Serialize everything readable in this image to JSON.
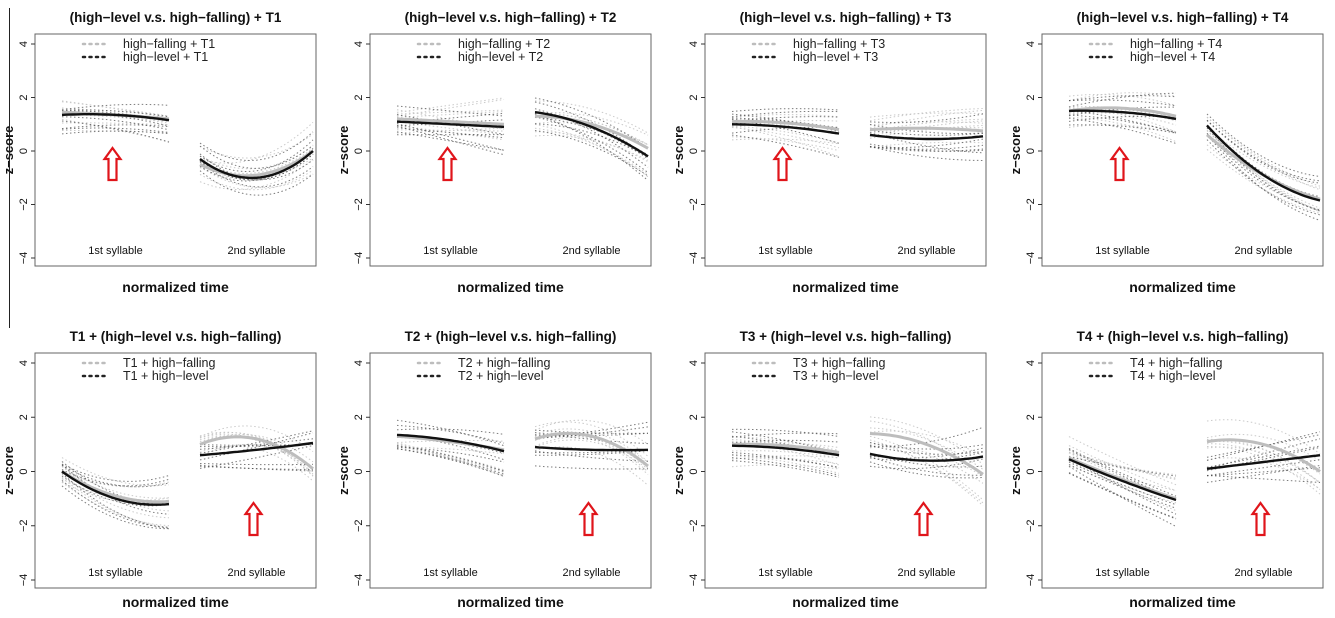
{
  "chart_data": [
    {
      "type": "line",
      "title": "(high−level v.s. high−falling) + T1",
      "xlabel": "normalized time",
      "ylabel": "z−score",
      "ylim": [
        -4,
        4
      ],
      "yticks": [
        "4",
        "2",
        "0",
        "−2",
        "−4"
      ],
      "segments": [
        "1st syllable",
        "2nd syllable"
      ],
      "arrow_segment": 0,
      "legend_position": "top-left",
      "series": [
        {
          "name": "high−falling + T1",
          "color": "#bbbbbb",
          "syl1": [
            1.45,
            1.35,
            1.2
          ],
          "syl2": [
            -0.5,
            -0.9,
            0.0
          ]
        },
        {
          "name": "high−level + T1",
          "color": "#111111",
          "syl1": [
            1.35,
            1.35,
            1.15
          ],
          "syl2": [
            -0.3,
            -1.0,
            0.0
          ]
        }
      ]
    },
    {
      "type": "line",
      "title": "(high−level v.s. high−falling) + T2",
      "xlabel": "normalized time",
      "ylabel": "z−score",
      "ylim": [
        -4,
        4
      ],
      "yticks": [
        "4",
        "2",
        "0",
        "−2",
        "−4"
      ],
      "segments": [
        "1st syllable",
        "2nd syllable"
      ],
      "arrow_segment": 0,
      "legend_position": "top-left",
      "series": [
        {
          "name": "high−falling + T2",
          "color": "#bbbbbb",
          "syl1": [
            1.2,
            1.1,
            1.0
          ],
          "syl2": [
            1.3,
            1.0,
            0.1
          ]
        },
        {
          "name": "high−level + T2",
          "color": "#111111",
          "syl1": [
            1.1,
            1.0,
            0.9
          ],
          "syl2": [
            1.45,
            0.9,
            -0.2
          ]
        }
      ]
    },
    {
      "type": "line",
      "title": "(high−level v.s. high−falling) + T3",
      "xlabel": "normalized time",
      "ylabel": "z−score",
      "ylim": [
        -4,
        4
      ],
      "yticks": [
        "4",
        "2",
        "0",
        "−2",
        "−4"
      ],
      "segments": [
        "1st syllable",
        "2nd syllable"
      ],
      "arrow_segment": 0,
      "legend_position": "top-left",
      "series": [
        {
          "name": "high−falling + T3",
          "color": "#bbbbbb",
          "syl1": [
            1.1,
            1.05,
            0.8
          ],
          "syl2": [
            0.8,
            0.85,
            0.75
          ]
        },
        {
          "name": "high−level + T3",
          "color": "#111111",
          "syl1": [
            1.0,
            0.9,
            0.65
          ],
          "syl2": [
            0.6,
            0.45,
            0.55
          ]
        }
      ]
    },
    {
      "type": "line",
      "title": "(high−level v.s. high−falling) + T4",
      "xlabel": "normalized time",
      "ylabel": "z−score",
      "ylim": [
        -4,
        4
      ],
      "yticks": [
        "4",
        "2",
        "0",
        "−2",
        "−4"
      ],
      "segments": [
        "1st syllable",
        "2nd syllable"
      ],
      "arrow_segment": 0,
      "legend_position": "top-left",
      "series": [
        {
          "name": "high−falling + T4",
          "color": "#bbbbbb",
          "syl1": [
            1.5,
            1.6,
            1.3
          ],
          "syl2": [
            0.6,
            -0.9,
            -1.8
          ]
        },
        {
          "name": "high−level + T4",
          "color": "#111111",
          "syl1": [
            1.5,
            1.45,
            1.2
          ],
          "syl2": [
            0.95,
            -0.9,
            -1.85
          ]
        }
      ]
    },
    {
      "type": "line",
      "title": "T1 + (high−level v.s. high−falling)",
      "xlabel": "normalized time",
      "ylabel": "z−score",
      "ylim": [
        -4,
        4
      ],
      "yticks": [
        "4",
        "2",
        "0",
        "−2",
        "−4"
      ],
      "segments": [
        "1st syllable",
        "2nd syllable"
      ],
      "arrow_segment": 1,
      "legend_position": "top-left",
      "series": [
        {
          "name": "T1 + high−falling",
          "color": "#bbbbbb",
          "syl1": [
            0.0,
            -0.9,
            -1.1
          ],
          "syl2": [
            1.0,
            1.2,
            0.1
          ]
        },
        {
          "name": "T1 + high−level",
          "color": "#111111",
          "syl1": [
            0.0,
            -1.0,
            -1.2
          ],
          "syl2": [
            0.6,
            0.8,
            1.05
          ]
        }
      ]
    },
    {
      "type": "line",
      "title": "T2 + (high−level v.s. high−falling)",
      "xlabel": "normalized time",
      "ylabel": "z−score",
      "ylim": [
        -4,
        4
      ],
      "yticks": [
        "4",
        "2",
        "0",
        "−2",
        "−4"
      ],
      "segments": [
        "1st syllable",
        "2nd syllable"
      ],
      "arrow_segment": 1,
      "legend_position": "top-left",
      "series": [
        {
          "name": "T2 + high−falling",
          "color": "#bbbbbb",
          "syl1": [
            1.3,
            1.1,
            0.8
          ],
          "syl2": [
            1.2,
            1.3,
            0.2
          ]
        },
        {
          "name": "T2 + high−level",
          "color": "#111111",
          "syl1": [
            1.35,
            1.15,
            0.75
          ],
          "syl2": [
            0.9,
            0.8,
            0.8
          ]
        }
      ]
    },
    {
      "type": "line",
      "title": "T3 + (high−level v.s. high−falling)",
      "xlabel": "normalized time",
      "ylabel": "z−score",
      "ylim": [
        -4,
        4
      ],
      "yticks": [
        "4",
        "2",
        "0",
        "−2",
        "−4"
      ],
      "segments": [
        "1st syllable",
        "2nd syllable"
      ],
      "arrow_segment": 1,
      "legend_position": "top-left",
      "series": [
        {
          "name": "T3 + high−falling",
          "color": "#bbbbbb",
          "syl1": [
            1.0,
            0.95,
            0.7
          ],
          "syl2": [
            1.4,
            1.0,
            -0.1
          ]
        },
        {
          "name": "T3 + high−level",
          "color": "#111111",
          "syl1": [
            0.95,
            0.85,
            0.6
          ],
          "syl2": [
            0.65,
            0.4,
            0.55
          ]
        }
      ]
    },
    {
      "type": "line",
      "title": "T4 + (high−level v.s. high−falling)",
      "xlabel": "normalized time",
      "ylabel": "z−score",
      "ylim": [
        -4,
        4
      ],
      "yticks": [
        "4",
        "2",
        "0",
        "−2",
        "−4"
      ],
      "segments": [
        "1st syllable",
        "2nd syllable"
      ],
      "arrow_segment": 1,
      "legend_position": "top-left",
      "series": [
        {
          "name": "T4 + high−falling",
          "color": "#bbbbbb",
          "syl1": [
            0.5,
            -0.3,
            -1.0
          ],
          "syl2": [
            1.1,
            1.0,
            0.0
          ]
        },
        {
          "name": "T4 + high−level",
          "color": "#111111",
          "syl1": [
            0.45,
            -0.35,
            -1.05
          ],
          "syl2": [
            0.1,
            0.35,
            0.6
          ]
        }
      ]
    }
  ]
}
